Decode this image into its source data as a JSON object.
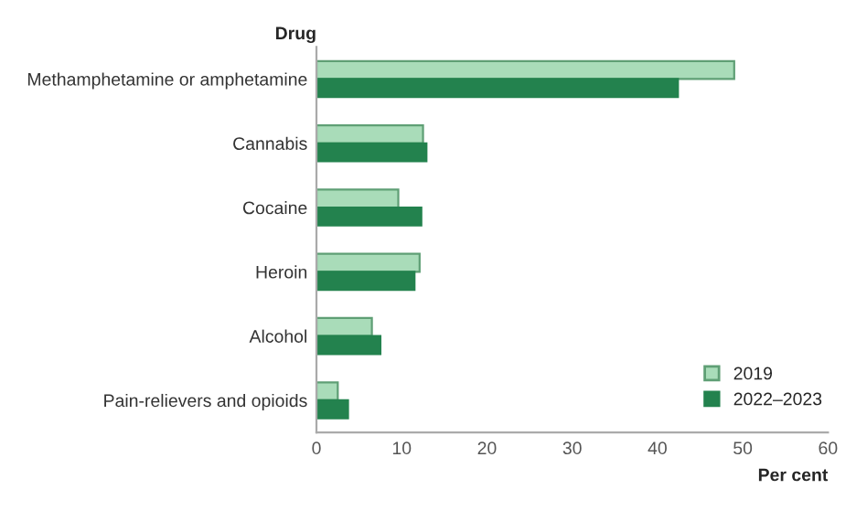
{
  "chart_data": {
    "type": "bar",
    "orientation": "horizontal",
    "ylabel": "Drug",
    "xlabel": "Per cent",
    "categories": [
      "Methamphetamine or amphetamine",
      "Cannabis",
      "Cocaine",
      "Heroin",
      "Alcohol",
      "Pain-relievers and opioids"
    ],
    "series": [
      {
        "name": "2019",
        "color": "#a9dcb9",
        "values": [
          49.0,
          12.5,
          9.6,
          12.1,
          6.5,
          2.5
        ]
      },
      {
        "name": "2022–2023",
        "color": "#23824e",
        "values": [
          42.4,
          12.9,
          12.3,
          11.5,
          7.5,
          3.7
        ]
      }
    ],
    "xlim": [
      0,
      60
    ],
    "xticks": [
      0,
      10,
      20,
      30,
      40,
      50,
      60
    ],
    "grid": false,
    "legend": "bottom right"
  }
}
